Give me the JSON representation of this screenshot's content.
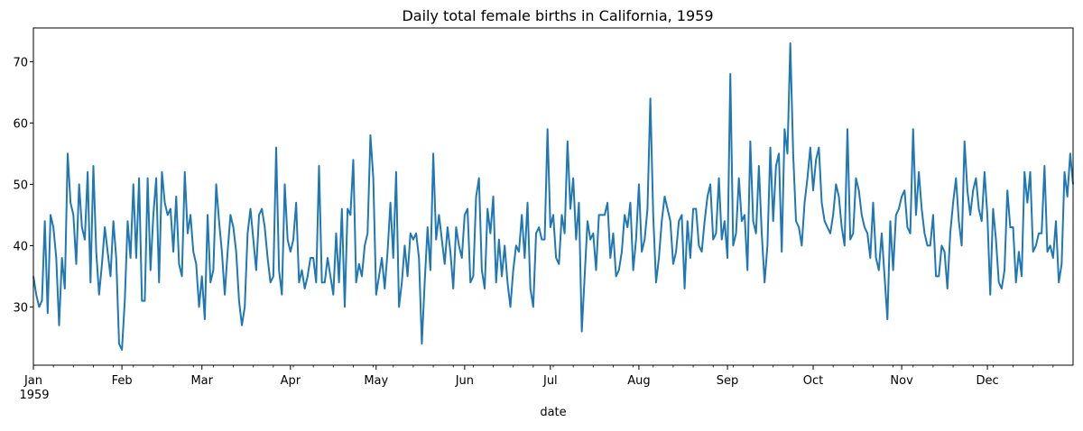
{
  "chart_data": {
    "type": "line",
    "title": "Daily total female births in California, 1959",
    "xlabel": "date",
    "ylabel": "",
    "x_start": "1959-01-01",
    "x_end": "1959-12-31",
    "xlim": [
      "1959-01-01",
      "1959-12-31"
    ],
    "ylim": [
      20.5,
      75.5
    ],
    "grid": false,
    "legend": "none",
    "y_ticks": [
      30,
      40,
      50,
      60,
      70
    ],
    "x_ticks": [
      {
        "date": "1959-01-01",
        "label": "Jan",
        "sublabel": "1959"
      },
      {
        "date": "1959-02-01",
        "label": "Feb"
      },
      {
        "date": "1959-03-01",
        "label": "Mar"
      },
      {
        "date": "1959-04-01",
        "label": "Apr"
      },
      {
        "date": "1959-05-01",
        "label": "May"
      },
      {
        "date": "1959-06-01",
        "label": "Jun"
      },
      {
        "date": "1959-07-01",
        "label": "Jul"
      },
      {
        "date": "1959-08-01",
        "label": "Aug"
      },
      {
        "date": "1959-09-01",
        "label": "Sep"
      },
      {
        "date": "1959-10-01",
        "label": "Oct"
      },
      {
        "date": "1959-11-01",
        "label": "Nov"
      },
      {
        "date": "1959-12-01",
        "label": "Dec"
      }
    ],
    "series": [
      {
        "color": "#1f77b4",
        "values": [
          35,
          32,
          30,
          31,
          44,
          29,
          45,
          43,
          38,
          27,
          38,
          33,
          55,
          47,
          45,
          37,
          50,
          43,
          41,
          52,
          34,
          53,
          39,
          32,
          37,
          43,
          39,
          35,
          44,
          38,
          24,
          23,
          31,
          44,
          38,
          50,
          38,
          51,
          31,
          31,
          51,
          36,
          45,
          51,
          34,
          52,
          47,
          45,
          46,
          39,
          48,
          37,
          35,
          52,
          42,
          45,
          39,
          37,
          30,
          35,
          28,
          45,
          34,
          36,
          50,
          44,
          39,
          32,
          39,
          45,
          43,
          39,
          31,
          27,
          30,
          42,
          46,
          41,
          36,
          45,
          46,
          43,
          38,
          34,
          35,
          56,
          36,
          32,
          50,
          41,
          39,
          41,
          47,
          34,
          36,
          33,
          35,
          38,
          38,
          34,
          53,
          34,
          34,
          38,
          35,
          32,
          42,
          34,
          46,
          30,
          46,
          45,
          54,
          34,
          37,
          35,
          40,
          42,
          58,
          51,
          32,
          35,
          38,
          33,
          39,
          47,
          38,
          52,
          30,
          34,
          40,
          35,
          42,
          41,
          42,
          38,
          24,
          34,
          43,
          36,
          55,
          41,
          45,
          41,
          37,
          43,
          39,
          33,
          43,
          40,
          38,
          45,
          46,
          34,
          35,
          48,
          51,
          36,
          33,
          46,
          42,
          48,
          34,
          41,
          35,
          40,
          34,
          30,
          36,
          40,
          39,
          45,
          38,
          47,
          33,
          30,
          42,
          43,
          41,
          41,
          59,
          43,
          45,
          38,
          37,
          45,
          42,
          57,
          46,
          51,
          41,
          47,
          26,
          35,
          44,
          41,
          42,
          36,
          45,
          45,
          45,
          47,
          38,
          42,
          35,
          36,
          39,
          45,
          43,
          47,
          36,
          41,
          50,
          39,
          41,
          46,
          64,
          45,
          34,
          38,
          44,
          48,
          46,
          44,
          37,
          39,
          44,
          45,
          33,
          44,
          38,
          46,
          46,
          40,
          39,
          44,
          48,
          50,
          41,
          42,
          51,
          41,
          44,
          38,
          68,
          40,
          42,
          51,
          44,
          45,
          36,
          57,
          44,
          42,
          53,
          42,
          34,
          40,
          56,
          44,
          53,
          55,
          39,
          59,
          55,
          73,
          55,
          44,
          43,
          40,
          47,
          51,
          56,
          49,
          54,
          56,
          47,
          44,
          43,
          42,
          45,
          50,
          48,
          43,
          40,
          59,
          41,
          42,
          51,
          49,
          45,
          43,
          42,
          38,
          47,
          38,
          36,
          42,
          35,
          28,
          44,
          36,
          45,
          46,
          48,
          49,
          43,
          42,
          59,
          45,
          52,
          46,
          42,
          40,
          40,
          45,
          35,
          35,
          40,
          39,
          33,
          42,
          47,
          51,
          44,
          40,
          57,
          49,
          45,
          49,
          51,
          46,
          44,
          52,
          45,
          32,
          46,
          41,
          34,
          33,
          36,
          49,
          43,
          43,
          34,
          39,
          35,
          52,
          47,
          52,
          39,
          40,
          42,
          42,
          53,
          39,
          40,
          38,
          44,
          34,
          37,
          52,
          48,
          55,
          50
        ]
      }
    ]
  }
}
